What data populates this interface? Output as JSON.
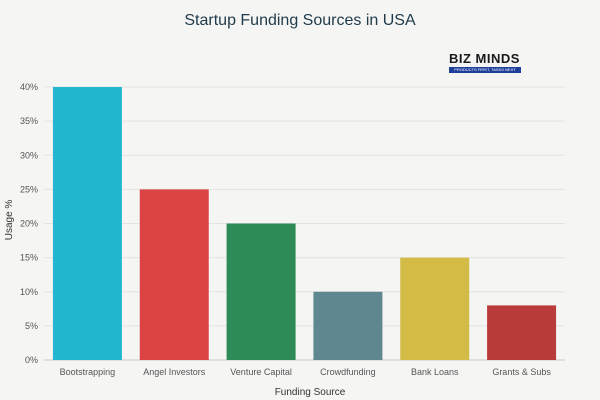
{
  "chart_data": {
    "type": "bar",
    "title": "Startup Funding Sources in USA",
    "xlabel": "Funding Source",
    "ylabel": "Usage %",
    "categories": [
      "Bootstrapping",
      "Angel Investors",
      "Venture Capital",
      "Crowdfunding",
      "Bank Loans",
      "Grants & Subs"
    ],
    "values": [
      40,
      25,
      20,
      10,
      15,
      8
    ],
    "colors": [
      "#22b7cf",
      "#dc4444",
      "#2e8b57",
      "#5f8790",
      "#d4bb46",
      "#b93c3a"
    ],
    "ylim": [
      0,
      40
    ],
    "yticks": [
      "0%",
      "5%",
      "10%",
      "15%",
      "20%",
      "25%",
      "30%",
      "35%",
      "40%"
    ],
    "grid": true
  },
  "logo": {
    "word": "BIZ MINDS",
    "tagline": "PRODUCTS FIRST, TASKS NEXT"
  }
}
